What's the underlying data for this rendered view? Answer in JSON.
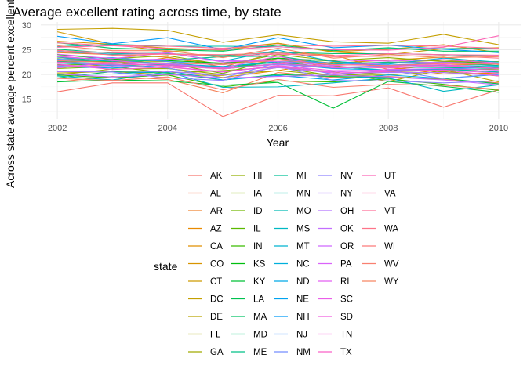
{
  "chart_data": {
    "type": "line",
    "title": "Average excellent rating across time, by state",
    "xlabel": "Year",
    "ylabel": "Across state average percent excellent",
    "x": [
      2002,
      2003,
      2004,
      2005,
      2006,
      2007,
      2008,
      2009,
      2010
    ],
    "xticks": [
      2002,
      2004,
      2006,
      2008,
      2010
    ],
    "yticks": [
      15,
      20,
      25,
      30
    ],
    "xlim": [
      2001.7,
      2010.4
    ],
    "ylim": [
      11.0,
      30.6
    ],
    "grid": true,
    "legend_title": "state",
    "legend_position": "bottom",
    "series": [
      {
        "name": "AK",
        "color": "#F8766D",
        "values": [
          16.5,
          18.3,
          18.3,
          11.5,
          15.8,
          15.7,
          17.3,
          13.4,
          16.9
        ]
      },
      {
        "name": "AL",
        "color": "#F47D52",
        "values": [
          18.5,
          19.6,
          19.0,
          16.3,
          20.4,
          19.4,
          19.6,
          19.0,
          18.3
        ]
      },
      {
        "name": "AR",
        "color": "#EF8330",
        "values": [
          24.4,
          24.0,
          23.5,
          21.5,
          24.5,
          23.9,
          21.0,
          21.9,
          22.1
        ]
      },
      {
        "name": "AZ",
        "color": "#E88A00",
        "values": [
          21.4,
          22.0,
          21.3,
          19.4,
          20.8,
          22.5,
          21.5,
          20.1,
          20.3
        ]
      },
      {
        "name": "CA",
        "color": "#E08F00",
        "values": [
          22.6,
          21.8,
          23.4,
          22.1,
          23.3,
          22.3,
          22.9,
          23.5,
          22.0
        ]
      },
      {
        "name": "CO",
        "color": "#D89400",
        "values": [
          26.7,
          26.1,
          24.6,
          25.2,
          26.3,
          24.5,
          24.0,
          25.2,
          25.4
        ]
      },
      {
        "name": "CT",
        "color": "#CE9A00",
        "values": [
          28.6,
          26.1,
          25.3,
          24.9,
          26.3,
          24.6,
          25.1,
          26.0,
          24.4
        ]
      },
      {
        "name": "DC",
        "color": "#C49F00",
        "values": [
          29.1,
          29.3,
          28.9,
          26.5,
          28.0,
          26.6,
          26.3,
          28.1,
          26.0
        ]
      },
      {
        "name": "DE",
        "color": "#B9A300",
        "values": [
          20.3,
          20.6,
          19.9,
          19.8,
          21.4,
          20.6,
          18.6,
          21.0,
          18.5
        ]
      },
      {
        "name": "FL",
        "color": "#ADA700",
        "values": [
          23.2,
          22.8,
          22.6,
          21.1,
          23.0,
          22.3,
          22.4,
          22.9,
          22.1
        ]
      },
      {
        "name": "GA",
        "color": "#A0AB00",
        "values": [
          19.9,
          21.1,
          21.2,
          20.0,
          20.8,
          19.8,
          19.9,
          20.6,
          19.7
        ]
      },
      {
        "name": "HI",
        "color": "#92AF00",
        "values": [
          22.3,
          23.2,
          23.8,
          22.0,
          24.0,
          22.8,
          23.4,
          22.6,
          22.6
        ]
      },
      {
        "name": "IA",
        "color": "#82B300",
        "values": [
          21.2,
          21.6,
          20.3,
          20.8,
          21.5,
          19.7,
          20.5,
          20.9,
          21.1
        ]
      },
      {
        "name": "ID",
        "color": "#70B600",
        "values": [
          22.7,
          22.6,
          22.3,
          20.2,
          23.3,
          21.8,
          20.6,
          21.1,
          20.5
        ]
      },
      {
        "name": "IL",
        "color": "#5AB900",
        "values": [
          21.9,
          22.1,
          21.8,
          21.2,
          22.6,
          21.3,
          21.7,
          21.9,
          21.4
        ]
      },
      {
        "name": "IN",
        "color": "#3BBC00",
        "values": [
          19.9,
          19.3,
          19.9,
          17.5,
          18.7,
          18.5,
          19.1,
          18.0,
          16.8
        ]
      },
      {
        "name": "KS",
        "color": "#00BE0F",
        "values": [
          24.0,
          23.1,
          22.8,
          22.3,
          23.3,
          22.7,
          21.7,
          22.5,
          22.3
        ]
      },
      {
        "name": "KY",
        "color": "#00C036",
        "values": [
          18.5,
          18.9,
          18.7,
          17.8,
          18.4,
          13.2,
          18.6,
          17.6,
          16.4
        ]
      },
      {
        "name": "LA",
        "color": "#00C14F",
        "values": [
          19.3,
          20.6,
          20.3,
          18.9,
          20.0,
          19.6,
          19.4,
          19.2,
          18.1
        ]
      },
      {
        "name": "MA",
        "color": "#00C263",
        "values": [
          26.4,
          25.3,
          25.0,
          24.7,
          25.9,
          24.8,
          25.4,
          24.7,
          24.7
        ]
      },
      {
        "name": "MD",
        "color": "#00C275",
        "values": [
          25.1,
          24.3,
          24.2,
          23.8,
          24.5,
          24.2,
          24.2,
          24.0,
          23.7
        ]
      },
      {
        "name": "ME",
        "color": "#00C186",
        "values": [
          23.5,
          22.6,
          22.9,
          23.6,
          23.7,
          22.1,
          22.5,
          22.4,
          21.8
        ]
      },
      {
        "name": "MI",
        "color": "#00C096",
        "values": [
          22.6,
          22.1,
          22.0,
          21.6,
          22.4,
          21.5,
          21.5,
          21.4,
          21.2
        ]
      },
      {
        "name": "MN",
        "color": "#00BEA6",
        "values": [
          25.6,
          26.1,
          25.7,
          25.7,
          25.6,
          25.0,
          25.2,
          25.2,
          25.3
        ]
      },
      {
        "name": "MO",
        "color": "#00BBB4",
        "values": [
          22.3,
          21.8,
          22.0,
          21.4,
          22.1,
          21.6,
          20.9,
          21.1,
          20.5
        ]
      },
      {
        "name": "MS",
        "color": "#00B8C3",
        "values": [
          19.7,
          18.9,
          20.5,
          17.4,
          17.5,
          18.3,
          19.3,
          16.6,
          17.9
        ]
      },
      {
        "name": "MT",
        "color": "#00B4D0",
        "values": [
          24.6,
          24.1,
          24.3,
          22.7,
          24.9,
          22.6,
          22.1,
          23.3,
          22.5
        ]
      },
      {
        "name": "NC",
        "color": "#00AFDC",
        "values": [
          22.9,
          22.8,
          22.2,
          21.6,
          22.6,
          22.3,
          21.9,
          21.8,
          21.7
        ]
      },
      {
        "name": "ND",
        "color": "#00A9E7",
        "values": [
          20.0,
          20.1,
          20.7,
          18.9,
          19.8,
          18.9,
          19.9,
          19.2,
          20.0
        ]
      },
      {
        "name": "NE",
        "color": "#00A3F0",
        "values": [
          21.6,
          21.3,
          21.9,
          21.1,
          22.2,
          21.2,
          20.9,
          21.1,
          21.5
        ]
      },
      {
        "name": "NH",
        "color": "#009BF8",
        "values": [
          27.7,
          26.2,
          27.4,
          25.0,
          27.4,
          25.4,
          25.9,
          25.1,
          24.4
        ]
      },
      {
        "name": "NJ",
        "color": "#4C95FD",
        "values": [
          23.1,
          23.4,
          22.6,
          22.0,
          23.0,
          22.3,
          21.9,
          22.3,
          22.2
        ]
      },
      {
        "name": "NM",
        "color": "#738DFF",
        "values": [
          22.5,
          21.9,
          21.3,
          19.3,
          22.4,
          20.0,
          20.8,
          19.2,
          20.1
        ]
      },
      {
        "name": "NV",
        "color": "#8F85FF",
        "values": [
          20.6,
          20.5,
          19.3,
          18.8,
          21.7,
          18.8,
          18.7,
          18.3,
          18.7
        ]
      },
      {
        "name": "NY",
        "color": "#A47DFF",
        "values": [
          22.4,
          21.9,
          22.2,
          21.3,
          22.0,
          21.4,
          21.8,
          21.7,
          21.2
        ]
      },
      {
        "name": "OH",
        "color": "#B575FF",
        "values": [
          20.6,
          20.7,
          20.6,
          19.9,
          21.4,
          20.3,
          20.4,
          20.4,
          19.8
        ]
      },
      {
        "name": "OK",
        "color": "#C36EFF",
        "values": [
          20.1,
          19.5,
          20.0,
          19.3,
          19.6,
          19.9,
          19.5,
          18.9,
          17.9
        ]
      },
      {
        "name": "OR",
        "color": "#CF67FF",
        "values": [
          23.6,
          22.9,
          23.1,
          22.8,
          22.6,
          21.8,
          22.3,
          22.5,
          22.1
        ]
      },
      {
        "name": "PA",
        "color": "#DA62FA",
        "values": [
          21.8,
          21.6,
          21.5,
          20.6,
          21.6,
          20.5,
          21.0,
          21.2,
          20.9
        ]
      },
      {
        "name": "RI",
        "color": "#E35FF2",
        "values": [
          24.1,
          23.2,
          24.4,
          22.5,
          23.0,
          22.9,
          22.7,
          23.0,
          22.3
        ]
      },
      {
        "name": "SC",
        "color": "#EA5DE9",
        "values": [
          21.3,
          22.5,
          21.6,
          20.5,
          21.8,
          20.8,
          20.8,
          20.9,
          20.3
        ]
      },
      {
        "name": "SD",
        "color": "#F05DDF",
        "values": [
          23.7,
          22.8,
          22.0,
          21.3,
          23.7,
          21.3,
          21.6,
          22.0,
          21.2
        ]
      },
      {
        "name": "TN",
        "color": "#F55ED3",
        "values": [
          22.1,
          21.0,
          21.5,
          20.5,
          21.8,
          20.3,
          20.6,
          20.9,
          19.7
        ]
      },
      {
        "name": "TX",
        "color": "#F962C6",
        "values": [
          22.5,
          22.1,
          21.8,
          21.1,
          22.2,
          21.6,
          21.3,
          21.8,
          21.2
        ]
      },
      {
        "name": "UT",
        "color": "#FC66B7",
        "values": [
          25.5,
          25.8,
          25.2,
          25.0,
          25.6,
          25.0,
          24.9,
          25.5,
          27.8
        ]
      },
      {
        "name": "VA",
        "color": "#FE6BA8",
        "values": [
          24.8,
          24.4,
          24.1,
          23.7,
          24.1,
          23.8,
          24.2,
          24.0,
          23.9
        ]
      },
      {
        "name": "VT",
        "color": "#FF6F99",
        "values": [
          26.4,
          25.8,
          25.7,
          25.3,
          26.0,
          25.7,
          25.9,
          25.7,
          25.3
        ]
      },
      {
        "name": "WA",
        "color": "#FE7489",
        "values": [
          24.9,
          23.9,
          24.1,
          24.0,
          24.3,
          23.6,
          23.7,
          23.8,
          23.3
        ]
      },
      {
        "name": "WI",
        "color": "#FC7A7A",
        "values": [
          22.8,
          22.4,
          22.3,
          22.0,
          22.9,
          22.0,
          21.8,
          22.2,
          22.1
        ]
      },
      {
        "name": "WV",
        "color": "#F98070",
        "values": [
          19.2,
          18.8,
          19.5,
          16.9,
          19.0,
          17.4,
          18.0,
          17.8,
          17.0
        ]
      },
      {
        "name": "WY",
        "color": "#F68664",
        "values": [
          25.8,
          24.8,
          24.8,
          23.4,
          25.3,
          23.3,
          24.0,
          23.4,
          23.6
        ]
      }
    ]
  }
}
